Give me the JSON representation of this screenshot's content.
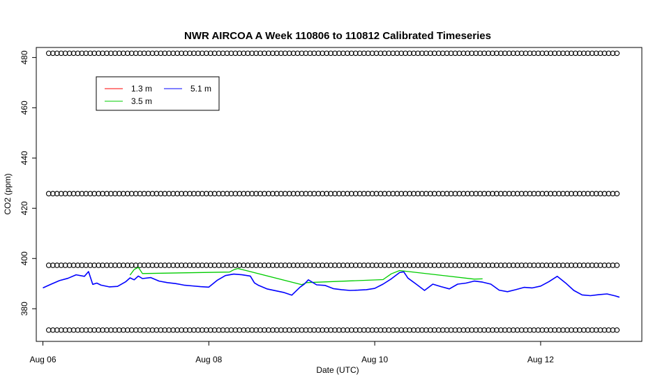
{
  "chart_data": {
    "type": "line",
    "title": "NWR AIRCOA A  Week 110806 to 110812  Calibrated Timeseries",
    "xlabel": "Date (UTC)",
    "ylabel": "CO2 (ppm)",
    "xlim_days": [
      5.92,
      13.22
    ],
    "ylim": [
      367,
      484
    ],
    "x_ticks": [
      {
        "label": "Aug 06",
        "day": 6
      },
      {
        "label": "Aug 08",
        "day": 8
      },
      {
        "label": "Aug 10",
        "day": 10
      },
      {
        "label": "Aug 12",
        "day": 12
      }
    ],
    "y_ticks": [
      380,
      400,
      420,
      440,
      460,
      480
    ],
    "legend": {
      "placement": "top-left",
      "entries": [
        {
          "label": "1.3 m",
          "color": "#ff0000"
        },
        {
          "label": "3.5 m",
          "color": "#00cc00"
        },
        {
          "label": "5.1 m",
          "color": "#0000ff"
        }
      ]
    },
    "reference_levels": {
      "description_values": [
        371.5,
        397.3,
        425.8,
        481.7
      ],
      "start_day": 6.07,
      "end_day": 12.95,
      "spacing_days": 0.05
    },
    "series": [
      {
        "name": "5.1 m",
        "color": "#0000ff",
        "day": [
          6.0,
          6.1,
          6.2,
          6.3,
          6.4,
          6.5,
          6.55,
          6.6,
          6.65,
          6.7,
          6.8,
          6.9,
          7.0,
          7.05,
          7.1,
          7.15,
          7.2,
          7.3,
          7.4,
          7.5,
          7.6,
          7.7,
          7.8,
          7.9,
          8.0,
          8.1,
          8.2,
          8.3,
          8.4,
          8.5,
          8.55,
          8.6,
          8.7,
          8.8,
          8.9,
          9.0,
          9.1,
          9.15,
          9.2,
          9.3,
          9.4,
          9.5,
          9.6,
          9.7,
          9.8,
          9.9,
          10.0,
          10.1,
          10.2,
          10.3,
          10.35,
          10.4,
          10.5,
          10.6,
          10.7,
          10.8,
          10.9,
          11.0,
          11.1,
          11.2,
          11.3,
          11.4,
          11.5,
          11.6,
          11.7,
          11.8,
          11.9,
          12.0,
          12.1,
          12.2,
          12.3,
          12.4,
          12.5,
          12.6,
          12.7,
          12.8,
          12.9,
          12.95
        ],
        "co2": [
          388.3,
          389.8,
          391.2,
          392.1,
          393.5,
          392.9,
          394.8,
          389.7,
          390.2,
          389.4,
          388.7,
          388.9,
          390.8,
          392.3,
          391.5,
          393.0,
          392.0,
          392.4,
          391.0,
          390.4,
          390.0,
          389.4,
          389.1,
          388.8,
          388.6,
          391.3,
          393.2,
          393.8,
          393.5,
          393.0,
          390.3,
          389.3,
          387.9,
          387.2,
          386.5,
          385.4,
          388.6,
          389.8,
          391.5,
          389.5,
          389.3,
          388.0,
          387.6,
          387.3,
          387.4,
          387.6,
          388.1,
          389.8,
          391.9,
          394.4,
          394.7,
          392.2,
          389.8,
          387.3,
          389.8,
          388.8,
          387.9,
          389.8,
          390.2,
          391.0,
          390.6,
          389.8,
          387.4,
          386.8,
          387.6,
          388.5,
          388.3,
          389.0,
          390.8,
          392.9,
          390.3,
          387.3,
          385.5,
          385.2,
          385.6,
          385.9,
          385.1,
          384.6
        ]
      },
      {
        "name": "3.5 m",
        "color": "#00cc00",
        "day": [
          7.05,
          7.1,
          7.15,
          7.2,
          8.25,
          8.3,
          8.35,
          8.45,
          9.12,
          9.18,
          10.1,
          10.2,
          10.3,
          11.2,
          11.3
        ],
        "co2": [
          393.4,
          395.6,
          396.5,
          394.0,
          394.6,
          395.5,
          396.0,
          395.2,
          389.6,
          390.4,
          391.6,
          393.9,
          395.2,
          391.8,
          391.9
        ]
      }
    ]
  }
}
